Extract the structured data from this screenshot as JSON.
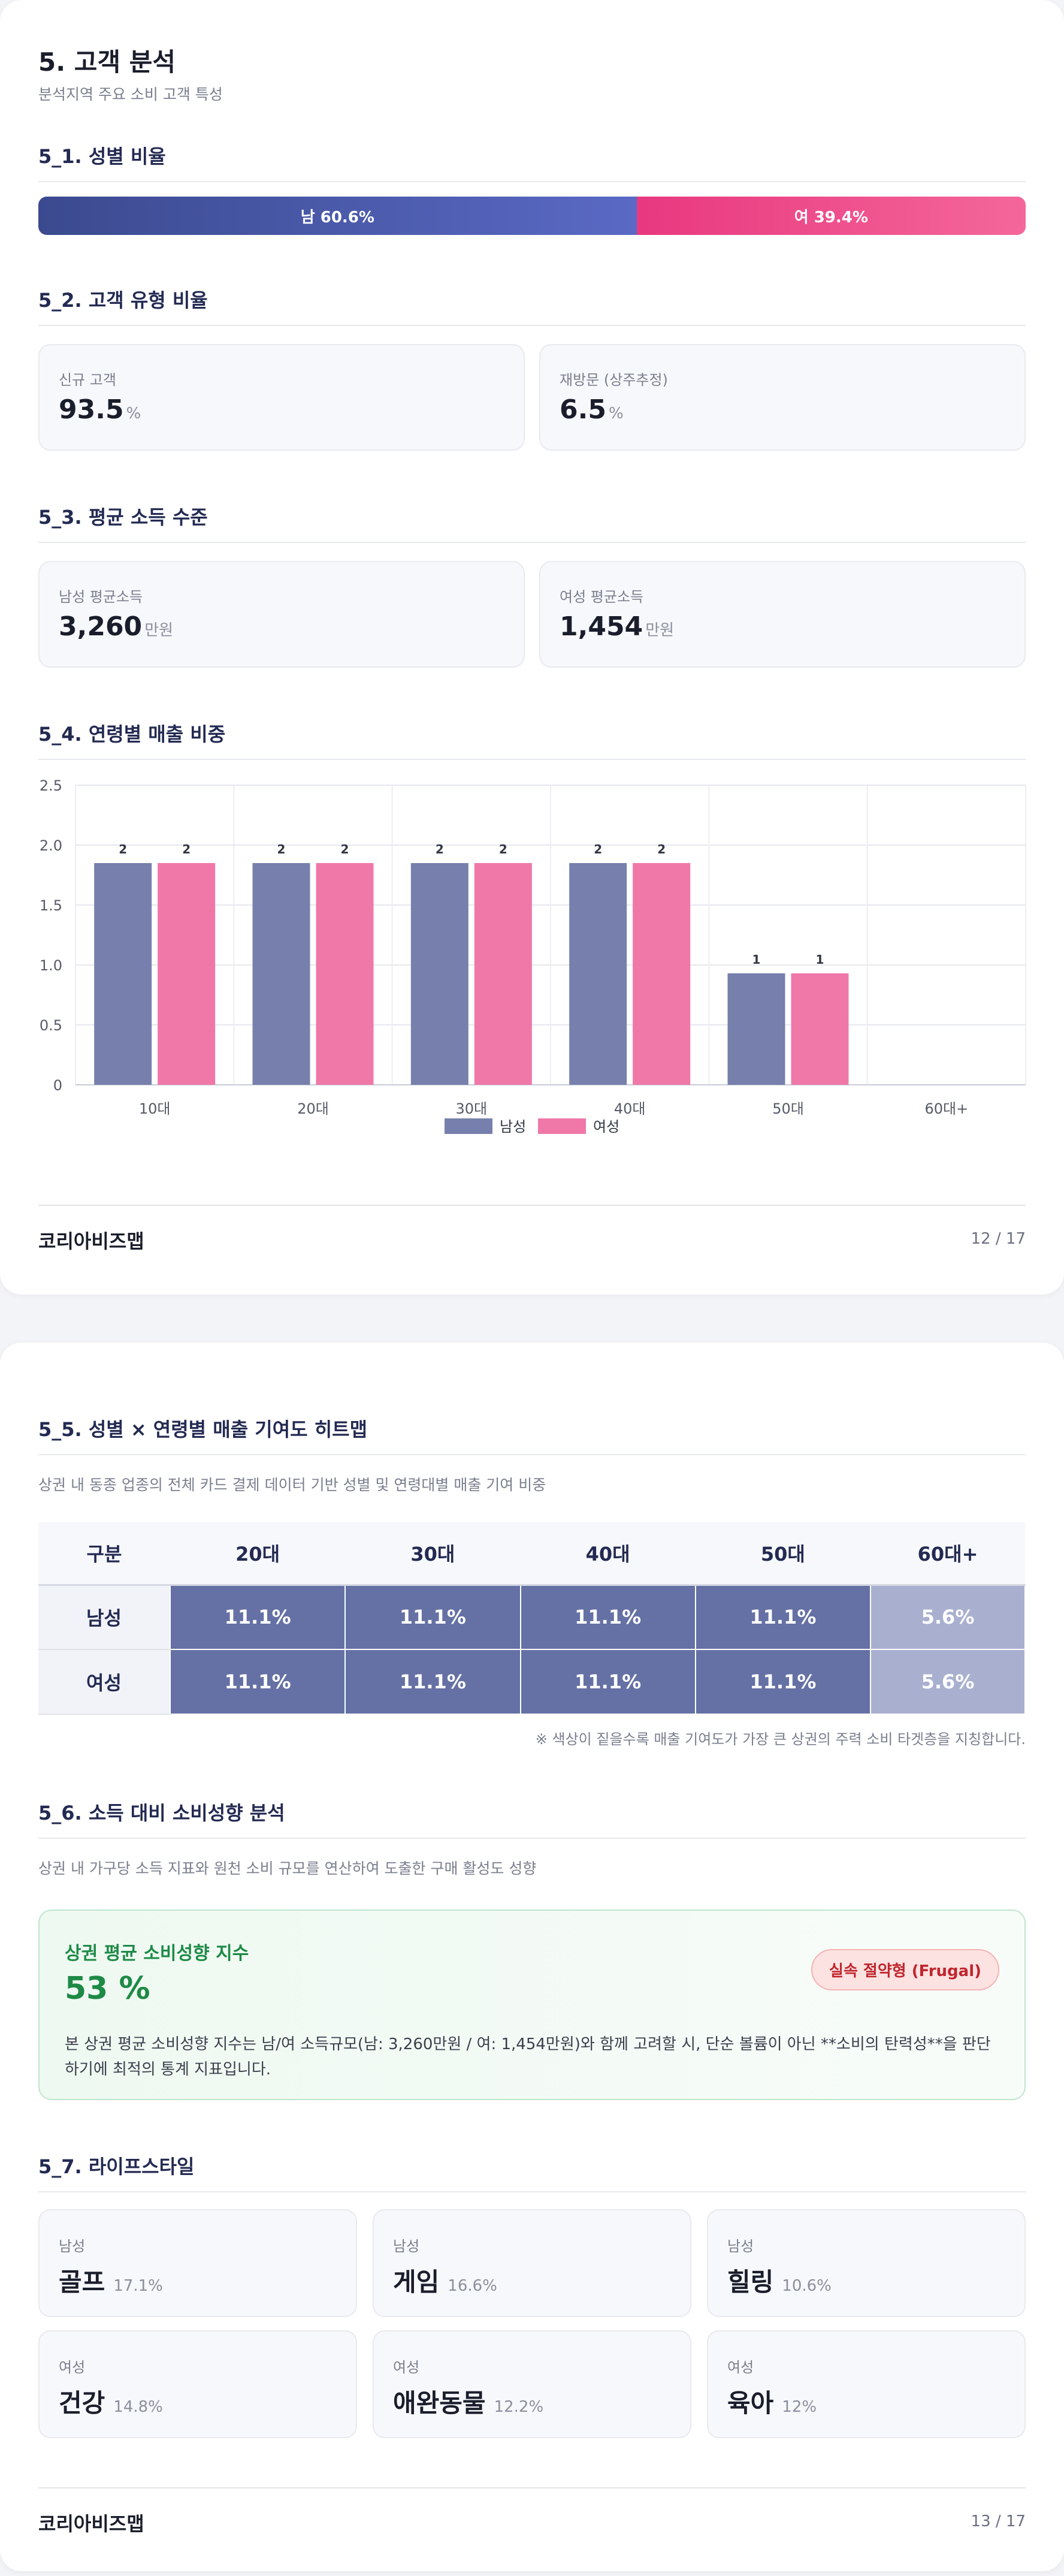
{
  "page1": {
    "title": "5. 고객 분석",
    "subtitle": "분석지역 주요 소비 고객 특성",
    "s1": {
      "title": "5_1. 성별 비율",
      "male_label": "남 60.6%",
      "female_label": "여 39.4%",
      "male_pct": 60.6,
      "female_pct": 39.4
    },
    "s2": {
      "title": "5_2. 고객 유형 비율",
      "cards": [
        {
          "label": "신규 고객",
          "value": "93.5",
          "unit": "%"
        },
        {
          "label": "재방문 (상주추정)",
          "value": "6.5",
          "unit": "%"
        }
      ]
    },
    "s3": {
      "title": "5_3. 평균 소득 수준",
      "cards": [
        {
          "label": "남성 평균소득",
          "value": "3,260",
          "unit": "만원"
        },
        {
          "label": "여성 평균소득",
          "value": "1,454",
          "unit": "만원"
        }
      ]
    },
    "s4": {
      "title": "5_4. 연령별 매출 비중"
    },
    "footer": {
      "brand": "코리아비즈맵",
      "page": "12 / 17"
    }
  },
  "chart_data": {
    "type": "bar",
    "categories": [
      "10대",
      "20대",
      "30대",
      "40대",
      "50대",
      "60대+"
    ],
    "series": [
      {
        "name": "남성",
        "values": [
          1.85,
          1.85,
          1.85,
          1.85,
          0.93,
          0
        ],
        "labels": [
          "2",
          "2",
          "2",
          "2",
          "1",
          ""
        ]
      },
      {
        "name": "여성",
        "values": [
          1.85,
          1.85,
          1.85,
          1.85,
          0.93,
          0
        ],
        "labels": [
          "2",
          "2",
          "2",
          "2",
          "1",
          ""
        ]
      }
    ],
    "yticks": [
      "0",
      "0.5",
      "1.0",
      "1.5",
      "2.0",
      "2.5"
    ],
    "ylim": [
      0,
      2.5
    ],
    "grid": true,
    "legend": "bottom",
    "colors": [
      "#7780ac",
      "#f078a8"
    ]
  },
  "page2": {
    "s5": {
      "title": "5_5. 성별 × 연령별 매출 기여도 히트맵",
      "desc": "상권 내 동종 업종의 전체 카드 결제 데이터 기반 성별 및 연령대별 매출 기여 비중",
      "headers": [
        "구분",
        "20대",
        "30대",
        "40대",
        "50대",
        "60대+"
      ],
      "rows": [
        {
          "label": "남성",
          "cells": [
            "11.1%",
            "11.1%",
            "11.1%",
            "11.1%",
            "5.6%"
          ]
        },
        {
          "label": "여성",
          "cells": [
            "11.1%",
            "11.1%",
            "11.1%",
            "11.1%",
            "5.6%"
          ]
        }
      ],
      "note": "※ 색상이 짙을수록 매출 기여도가 가장 큰 상권의 주력 소비 타겟층을 지칭합니다."
    },
    "s6": {
      "title": "5_6. 소득 대비 소비성향 분석",
      "desc": "상권 내 가구당 소득 지표와 원천 소비 규모를 연산하여 도출한 구매 활성도 성향",
      "box_title": "상권 평균 소비성향 지수",
      "box_value": "53 %",
      "tag": "실속 절약형 (Frugal)",
      "box_desc": "본 상권 평균 소비성향 지수는 남/여 소득규모(남: 3,260만원 / 여: 1,454만원)와 함께 고려할 시, 단순 볼륨이 아닌 **소비의 탄력성**을 판단하기에 최적의 통계 지표입니다."
    },
    "s7": {
      "title": "5_7. 라이프스타일",
      "items": [
        {
          "gender": "남성",
          "name": "골프",
          "pct": "17.1%"
        },
        {
          "gender": "남성",
          "name": "게임",
          "pct": "16.6%"
        },
        {
          "gender": "남성",
          "name": "힐링",
          "pct": "10.6%"
        },
        {
          "gender": "여성",
          "name": "건강",
          "pct": "14.8%"
        },
        {
          "gender": "여성",
          "name": "애완동물",
          "pct": "12.2%"
        },
        {
          "gender": "여성",
          "name": "육아",
          "pct": "12%"
        }
      ]
    },
    "footer": {
      "brand": "코리아비즈맵",
      "page": "13 / 17"
    }
  }
}
